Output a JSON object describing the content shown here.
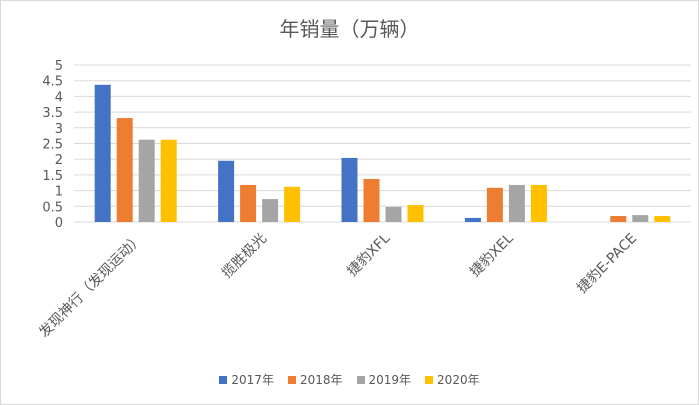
{
  "chart_data": {
    "type": "bar",
    "title": "年销量（万辆）",
    "xlabel": "",
    "ylabel": "",
    "ylim": [
      0,
      5
    ],
    "yticks": [
      "0",
      "0.5",
      "1",
      "1.5",
      "2",
      "2.5",
      "3",
      "3.5",
      "4",
      "4.5",
      "5"
    ],
    "grid": true,
    "legend_position": "bottom",
    "categories": [
      "发现神行（发现运动）",
      "揽胜极光",
      "捷豹XFL",
      "捷豹XEL",
      "捷豹E-PACE"
    ],
    "series": [
      {
        "name": "2017年",
        "color": "#4472c4",
        "values": [
          4.37,
          1.95,
          2.04,
          0.13,
          0
        ]
      },
      {
        "name": "2018年",
        "color": "#ed7d31",
        "values": [
          3.31,
          1.18,
          1.37,
          1.09,
          0.19
        ]
      },
      {
        "name": "2019年",
        "color": "#a5a5a5",
        "values": [
          2.62,
          0.73,
          0.48,
          1.18,
          0.22
        ]
      },
      {
        "name": "2020年",
        "color": "#ffc000",
        "values": [
          2.62,
          1.12,
          0.54,
          1.18,
          0.19
        ]
      }
    ]
  }
}
